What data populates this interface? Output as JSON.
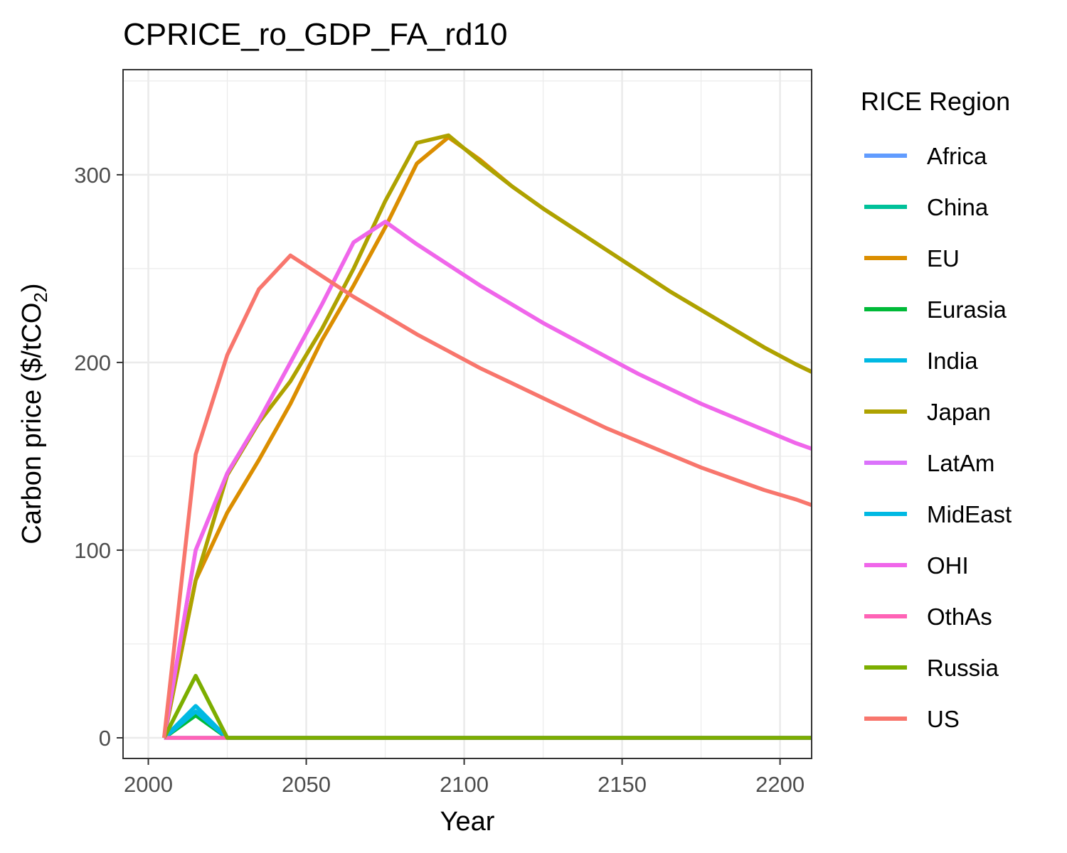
{
  "chart_data": {
    "type": "line",
    "title": "CPRICE_ro_GDP_FA_rd10",
    "xlabel": "Year",
    "ylabel": "Carbon price ($/tCO",
    "ylabel_subscript": "2",
    "ylabel_suffix": ")",
    "xlim": [
      1992,
      2210
    ],
    "ylim": [
      -11,
      356
    ],
    "x_ticks": [
      2000,
      2050,
      2100,
      2150,
      2200
    ],
    "x_tick_labels": [
      "2000",
      "2050",
      "2100",
      "2150",
      "2200"
    ],
    "y_ticks": [
      0,
      100,
      200,
      300
    ],
    "y_tick_labels": [
      "0",
      "100",
      "200",
      "300"
    ],
    "grid": true,
    "legend": {
      "title": "RICE Region",
      "position": "right"
    },
    "series": [
      {
        "name": "Africa",
        "color": "#619CFF",
        "x": [
          2005,
          2015,
          2025,
          2210
        ],
        "y": [
          0,
          0,
          0,
          0
        ]
      },
      {
        "name": "China",
        "color": "#00C19A",
        "x": [
          2005,
          2015,
          2025,
          2210
        ],
        "y": [
          0,
          12,
          0,
          0
        ]
      },
      {
        "name": "EU",
        "color": "#DB8E00",
        "x": [
          2005,
          2015,
          2025,
          2035,
          2045,
          2055,
          2065,
          2075,
          2085,
          2095,
          2105,
          2115,
          2125,
          2135,
          2145,
          2155,
          2165,
          2175,
          2185,
          2195,
          2205,
          2210
        ],
        "y": [
          0,
          84,
          120,
          148,
          178,
          212,
          241,
          272,
          306,
          320,
          308,
          294,
          282,
          271,
          260,
          249,
          238,
          228,
          218,
          208,
          199,
          195
        ]
      },
      {
        "name": "Eurasia",
        "color": "#00BA38",
        "x": [
          2005,
          2015,
          2025,
          2210
        ],
        "y": [
          0,
          12,
          0,
          0
        ]
      },
      {
        "name": "India",
        "color": "#00B9E3",
        "x": [
          2005,
          2015,
          2025,
          2210
        ],
        "y": [
          0,
          14,
          0,
          0
        ]
      },
      {
        "name": "Japan",
        "color": "#AEA200",
        "x": [
          2005,
          2015,
          2025,
          2035,
          2045,
          2055,
          2065,
          2075,
          2085,
          2095,
          2105,
          2115,
          2125,
          2135,
          2145,
          2155,
          2165,
          2175,
          2185,
          2195,
          2205,
          2210
        ],
        "y": [
          0,
          84,
          140,
          168,
          190,
          218,
          250,
          286,
          317,
          321,
          307,
          294,
          282,
          271,
          260,
          249,
          238,
          228,
          218,
          208,
          199,
          195
        ]
      },
      {
        "name": "LatAm",
        "color": "#DB72FB",
        "x": [
          2005,
          2015,
          2025,
          2035,
          2045,
          2055,
          2065,
          2075,
          2085,
          2095,
          2105,
          2115,
          2125,
          2135,
          2145,
          2155,
          2165,
          2175,
          2185,
          2195,
          2205,
          2210
        ],
        "y": [
          0,
          100,
          141,
          169,
          200,
          231,
          264,
          275,
          263,
          252,
          241,
          231,
          221,
          212,
          203,
          194,
          186,
          178,
          171,
          164,
          157,
          154
        ]
      },
      {
        "name": "MidEast",
        "color": "#00B9E3",
        "x": [
          2005,
          2015,
          2025,
          2210
        ],
        "y": [
          0,
          17,
          0,
          0
        ]
      },
      {
        "name": "OHI",
        "color": "#F066EA",
        "x": [
          2005,
          2015,
          2025,
          2035,
          2045,
          2055,
          2065,
          2075,
          2085,
          2095,
          2105,
          2115,
          2125,
          2135,
          2145,
          2155,
          2165,
          2175,
          2185,
          2195,
          2205,
          2210
        ],
        "y": [
          0,
          100,
          141,
          169,
          200,
          231,
          264,
          275,
          263,
          252,
          241,
          231,
          221,
          212,
          203,
          194,
          186,
          178,
          171,
          164,
          157,
          154
        ]
      },
      {
        "name": "OthAs",
        "color": "#FF63B6",
        "x": [
          2005,
          2015,
          2025,
          2210
        ],
        "y": [
          0,
          0,
          0,
          0
        ]
      },
      {
        "name": "Russia",
        "color": "#7CAE00",
        "x": [
          2005,
          2015,
          2025,
          2210
        ],
        "y": [
          0,
          33,
          0,
          0
        ]
      },
      {
        "name": "US",
        "color": "#F8766D",
        "x": [
          2005,
          2015,
          2025,
          2035,
          2045,
          2055,
          2065,
          2075,
          2085,
          2095,
          2105,
          2115,
          2125,
          2135,
          2145,
          2155,
          2165,
          2175,
          2185,
          2195,
          2205,
          2210
        ],
        "y": [
          0,
          151,
          204,
          239,
          257,
          246,
          235,
          225,
          215,
          206,
          197,
          189,
          181,
          173,
          165,
          158,
          151,
          144,
          138,
          132,
          127,
          124
        ]
      }
    ]
  }
}
